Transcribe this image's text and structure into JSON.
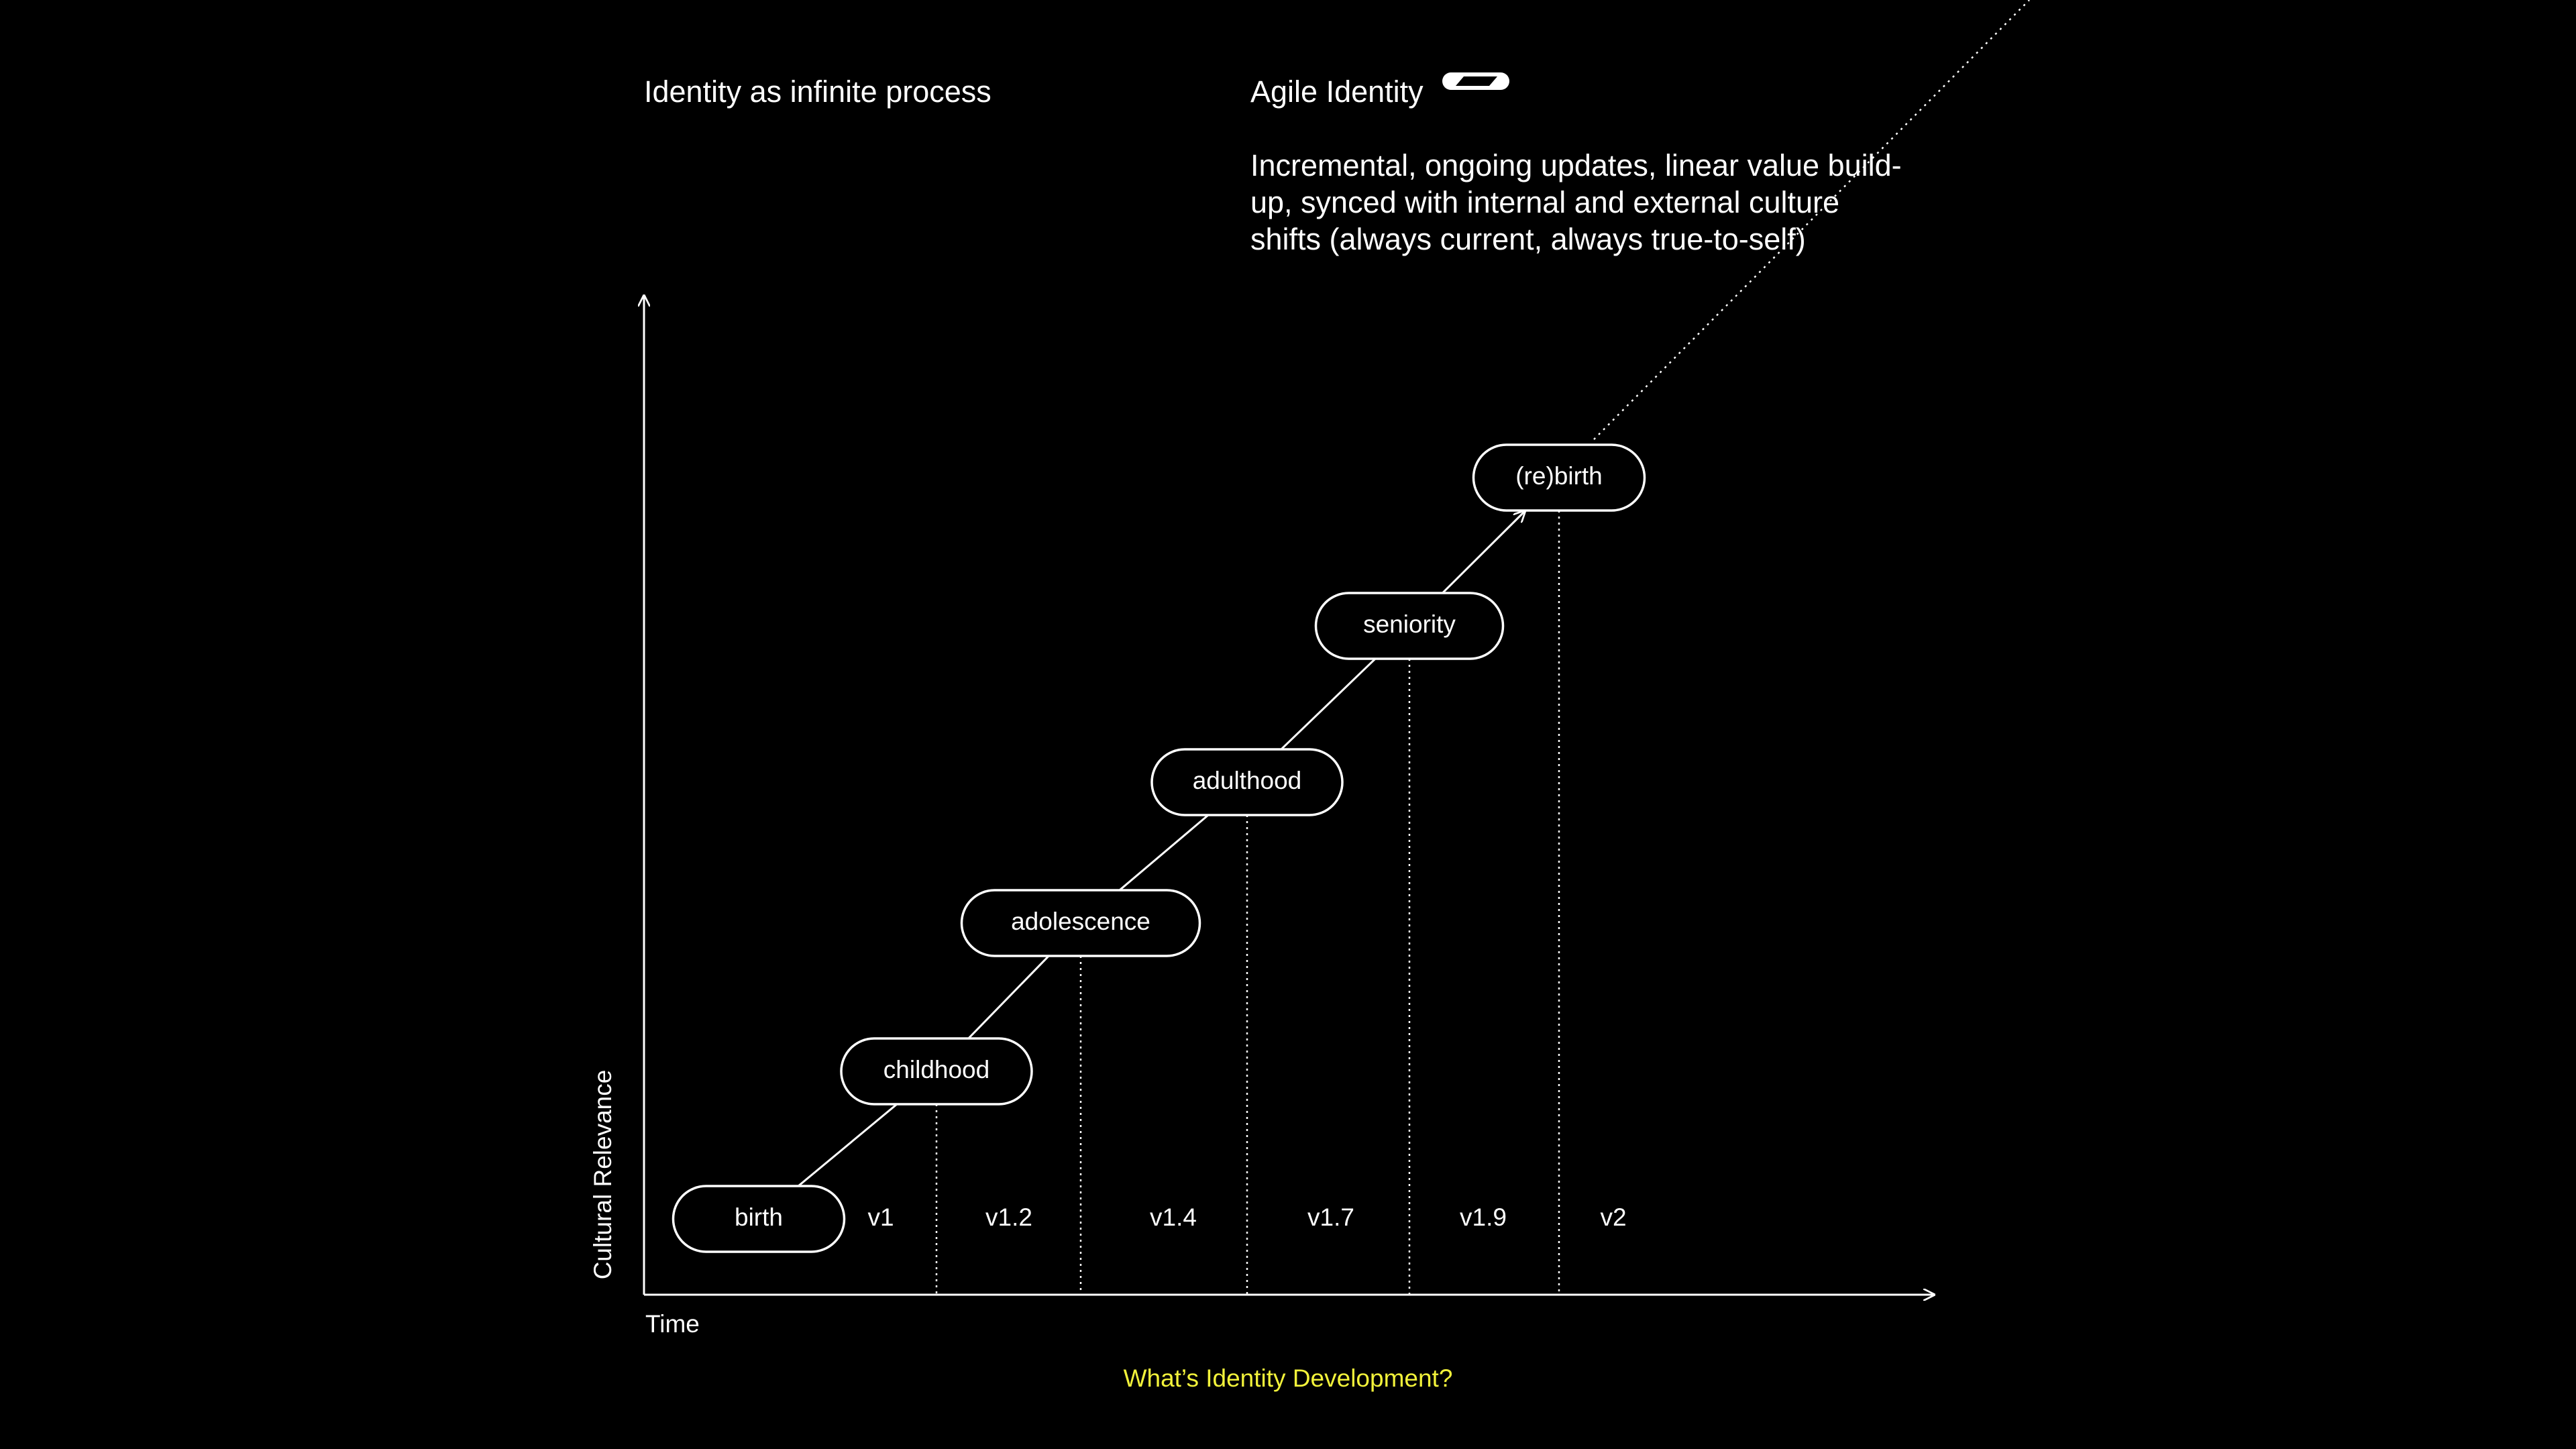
{
  "header": {
    "left_title": "Identity as infinite process",
    "right_title": "Agile Identity",
    "description": [
      "Incremental, ongoing updates, linear value build-",
      "up, synced with internal and external culture",
      "shifts (always current, always true-to-self)"
    ]
  },
  "axes": {
    "y_label": "Cultural Relevance",
    "x_label": "Time"
  },
  "nodes": [
    {
      "label": "birth"
    },
    {
      "label": "childhood"
    },
    {
      "label": "adolescence"
    },
    {
      "label": "adulthood"
    },
    {
      "label": "seniority"
    },
    {
      "label": "(re)birth"
    }
  ],
  "versions": [
    "v1",
    "v1.2",
    "v1.4",
    "v1.7",
    "v1.9",
    "v2"
  ],
  "footer": {
    "caption": "What’s Identity Development?"
  }
}
